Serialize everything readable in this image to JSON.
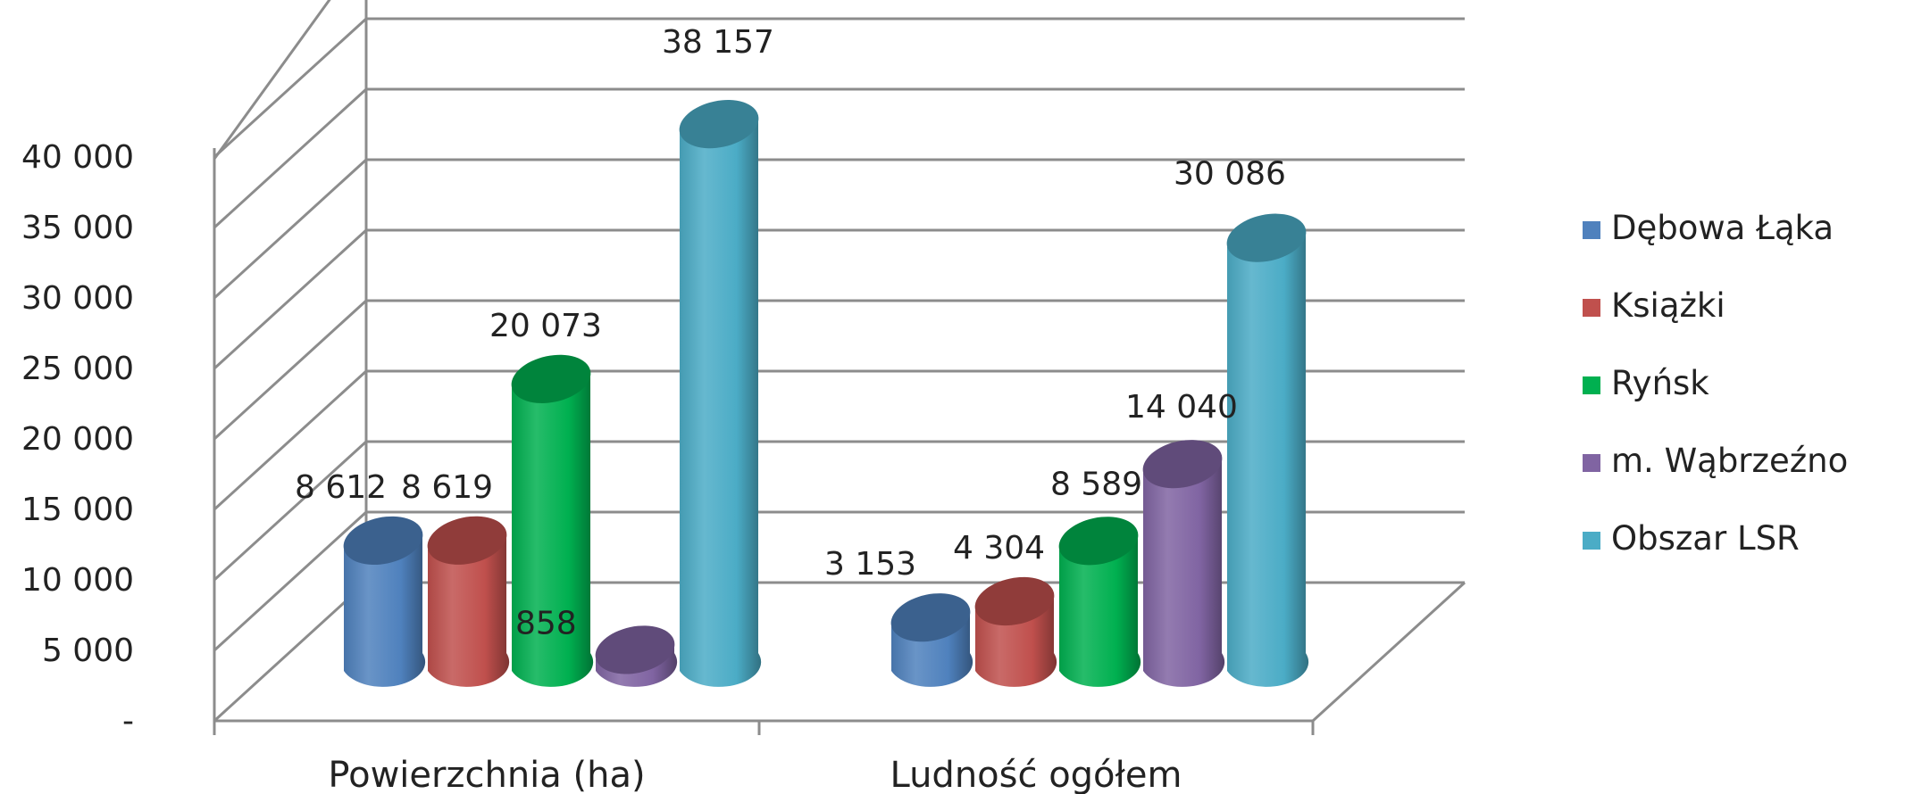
{
  "chart_data": {
    "type": "bar",
    "style": "3d-cylinder",
    "categories": [
      "Powierzchnia (ha)",
      "Ludność ogółem"
    ],
    "series": [
      {
        "name": "Dębowa Łąka",
        "color": "#4F81BD",
        "values": [
          8612,
          3153
        ],
        "labels": [
          "8 612",
          "3 153"
        ]
      },
      {
        "name": "Książki",
        "color": "#C0504D",
        "values": [
          8619,
          4304
        ],
        "labels": [
          "8 619",
          "4 304"
        ]
      },
      {
        "name": "Ryńsk",
        "color": "#00B050",
        "values": [
          20073,
          8589
        ],
        "labels": [
          "20 073",
          "8 589"
        ]
      },
      {
        "name": "m. Wąbrzeźno",
        "color": "#8064A2",
        "values": [
          858,
          14040
        ],
        "labels": [
          "858",
          "14 040"
        ]
      },
      {
        "name": "Obszar LSR",
        "color": "#4BACC6",
        "values": [
          38157,
          30086
        ],
        "labels": [
          "38 157",
          "30 086"
        ]
      }
    ],
    "y_ticks": [
      {
        "value": 0,
        "label": "-"
      },
      {
        "value": 5000,
        "label": "5 000"
      },
      {
        "value": 10000,
        "label": "10 000"
      },
      {
        "value": 15000,
        "label": "15 000"
      },
      {
        "value": 20000,
        "label": "20 000"
      },
      {
        "value": 25000,
        "label": "25 000"
      },
      {
        "value": 30000,
        "label": "30 000"
      },
      {
        "value": 35000,
        "label": "35 000"
      },
      {
        "value": 40000,
        "label": "40 000"
      }
    ],
    "ylim": [
      0,
      40000
    ],
    "grid": true,
    "legend_position": "right",
    "title": "",
    "xlabel": "",
    "ylabel": ""
  }
}
